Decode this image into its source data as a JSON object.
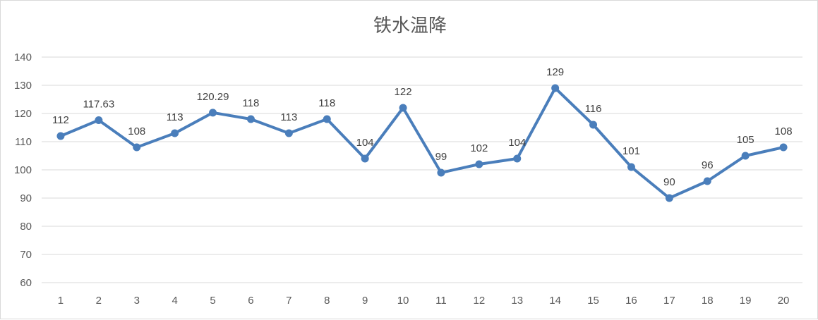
{
  "chart_data": {
    "type": "line",
    "title": "铁水温降",
    "xlabel": "",
    "ylabel": "",
    "x": [
      "1",
      "2",
      "3",
      "4",
      "5",
      "6",
      "7",
      "8",
      "9",
      "10",
      "11",
      "12",
      "13",
      "14",
      "15",
      "16",
      "17",
      "18",
      "19",
      "20"
    ],
    "series": [
      {
        "values": [
          112,
          117.63,
          108,
          113,
          120.29,
          118,
          113,
          118,
          104,
          122,
          99,
          102,
          104,
          129,
          116,
          101,
          90,
          96,
          105,
          108
        ],
        "labels": [
          "112",
          "117.63",
          "108",
          "113",
          "120.29",
          "118",
          "113",
          "118",
          "104",
          "122",
          "99",
          "102",
          "104",
          "129",
          "116",
          "101",
          "90",
          "96",
          "105",
          "108"
        ]
      }
    ],
    "ylim": [
      60,
      140
    ],
    "yticks": [
      "60",
      "70",
      "80",
      "90",
      "100",
      "110",
      "120",
      "130",
      "140"
    ],
    "grid": true,
    "legend": "none",
    "colors": {
      "series": "#4a7ebb",
      "grid": "#d9d9d9",
      "text": "#595959"
    }
  }
}
